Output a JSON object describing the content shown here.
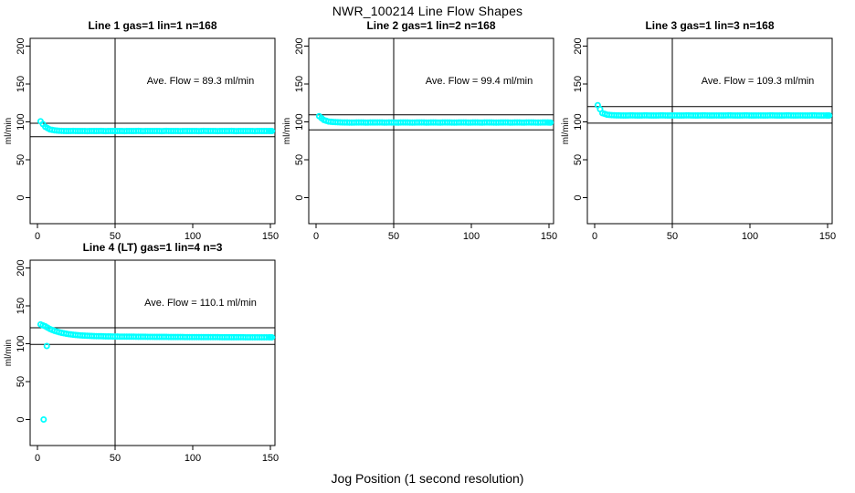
{
  "chart_data": {
    "type": "scatter",
    "title": "NWR_100214  Line Flow Shapes",
    "xlabel": "Jog Position (1 second resolution)",
    "ylabel": "ml/min",
    "x_ticks": [
      0,
      50,
      100,
      150
    ],
    "y_ticks": [
      0,
      50,
      100,
      150,
      200
    ],
    "xlim": [
      -5,
      157
    ],
    "ylim": [
      -35,
      211
    ],
    "grid": false,
    "legend": "none",
    "point_color": "#00FFFF",
    "line_color": "#000000",
    "vline_x": 50,
    "annotation_anchor": {
      "x": 105,
      "y": 150
    },
    "panels": [
      {
        "title": "Line 1 gas=1 lin=1 n=168",
        "ave_label": "Ave. Flow =  89.3  ml/min",
        "ave_flow": 89.3,
        "hlines": [
          98.2,
          80.4
        ],
        "points": [
          [
            2,
            100.8
          ],
          [
            5,
            93.5
          ],
          [
            8,
            90
          ],
          [
            11,
            88.8
          ],
          [
            14,
            88.3
          ],
          [
            17,
            88
          ],
          [
            20,
            87.9
          ],
          [
            23,
            88.1
          ],
          [
            26,
            87.9
          ],
          [
            29,
            88
          ],
          [
            32,
            87.8
          ],
          [
            35,
            88
          ],
          [
            38,
            87.9
          ],
          [
            41,
            88.1
          ],
          [
            44,
            87.8
          ],
          [
            47,
            88
          ],
          [
            50,
            87.9
          ],
          [
            53,
            88
          ],
          [
            56,
            87.8
          ],
          [
            59,
            88
          ],
          [
            62,
            87.9
          ],
          [
            65,
            88.1
          ],
          [
            68,
            87.8
          ],
          [
            71,
            88
          ],
          [
            74,
            87.9
          ],
          [
            77,
            88
          ],
          [
            80,
            87.8
          ],
          [
            83,
            88.1
          ],
          [
            86,
            87.9
          ],
          [
            89,
            88
          ],
          [
            92,
            87.8
          ],
          [
            95,
            88
          ],
          [
            98,
            87.9
          ],
          [
            101,
            88
          ],
          [
            104,
            87.8
          ],
          [
            107,
            88.1
          ],
          [
            110,
            87.9
          ],
          [
            113,
            88
          ],
          [
            116,
            87.8
          ],
          [
            119,
            88
          ],
          [
            122,
            87.9
          ],
          [
            125,
            88.1
          ],
          [
            128,
            87.8
          ],
          [
            131,
            88
          ],
          [
            134,
            87.9
          ],
          [
            137,
            88
          ],
          [
            140,
            87.8
          ],
          [
            143,
            88
          ],
          [
            146,
            87.9
          ],
          [
            149,
            88
          ],
          [
            151,
            87.9
          ]
        ],
        "outliers": []
      },
      {
        "title": "Line 2 gas=1 lin=2 n=168",
        "ave_label": "Ave. Flow =  99.4  ml/min",
        "ave_flow": 99.4,
        "hlines": [
          109.3,
          89.5
        ],
        "points": [
          [
            2,
            107.5
          ],
          [
            5,
            102.5
          ],
          [
            8,
            100.5
          ],
          [
            11,
            99.8
          ],
          [
            14,
            99.5
          ],
          [
            17,
            99.3
          ],
          [
            20,
            99.2
          ],
          [
            23,
            99.1
          ],
          [
            26,
            99.2
          ],
          [
            29,
            99.3
          ],
          [
            32,
            99.1
          ],
          [
            35,
            99.2
          ],
          [
            38,
            99.2
          ],
          [
            41,
            99.3
          ],
          [
            44,
            99.1
          ],
          [
            47,
            99.2
          ],
          [
            50,
            99.2
          ],
          [
            53,
            99.1
          ],
          [
            56,
            99.3
          ],
          [
            59,
            99.2
          ],
          [
            62,
            99.1
          ],
          [
            65,
            99.2
          ],
          [
            68,
            99.3
          ],
          [
            71,
            99.1
          ],
          [
            74,
            99.2
          ],
          [
            77,
            99.2
          ],
          [
            80,
            99.1
          ],
          [
            83,
            99.3
          ],
          [
            86,
            99.2
          ],
          [
            89,
            99.1
          ],
          [
            92,
            99.2
          ],
          [
            95,
            99.3
          ],
          [
            98,
            99.1
          ],
          [
            101,
            99.2
          ],
          [
            104,
            99.2
          ],
          [
            107,
            99.1
          ],
          [
            110,
            99.3
          ],
          [
            113,
            99.2
          ],
          [
            116,
            99.1
          ],
          [
            119,
            99.2
          ],
          [
            122,
            99.3
          ],
          [
            125,
            99.1
          ],
          [
            128,
            99.2
          ],
          [
            131,
            99.2
          ],
          [
            134,
            99.1
          ],
          [
            137,
            99.3
          ],
          [
            140,
            99.2
          ],
          [
            143,
            99.1
          ],
          [
            146,
            99.2
          ],
          [
            149,
            99.2
          ],
          [
            151,
            99.1
          ]
        ],
        "outliers": []
      },
      {
        "title": "Line 3 gas=1 lin=3 n=168",
        "ave_label": "Ave. Flow =  109.3  ml/min",
        "ave_flow": 109.3,
        "hlines": [
          120.2,
          98.4
        ],
        "points": [
          [
            2,
            122
          ],
          [
            5,
            111.5
          ],
          [
            8,
            109.5
          ],
          [
            11,
            108.9
          ],
          [
            14,
            108.6
          ],
          [
            17,
            108.5
          ],
          [
            20,
            108.4
          ],
          [
            23,
            108.6
          ],
          [
            26,
            108.5
          ],
          [
            29,
            108.4
          ],
          [
            32,
            108.6
          ],
          [
            35,
            108.5
          ],
          [
            38,
            108.4
          ],
          [
            41,
            108.5
          ],
          [
            44,
            108.6
          ],
          [
            47,
            108.4
          ],
          [
            50,
            108.5
          ],
          [
            53,
            108.5
          ],
          [
            56,
            108.4
          ],
          [
            59,
            108.6
          ],
          [
            62,
            108.5
          ],
          [
            65,
            108.4
          ],
          [
            68,
            108.5
          ],
          [
            71,
            108.6
          ],
          [
            74,
            108.4
          ],
          [
            77,
            108.5
          ],
          [
            80,
            108.5
          ],
          [
            83,
            108.4
          ],
          [
            86,
            108.6
          ],
          [
            89,
            108.5
          ],
          [
            92,
            108.4
          ],
          [
            95,
            108.5
          ],
          [
            98,
            108.6
          ],
          [
            101,
            108.4
          ],
          [
            104,
            108.5
          ],
          [
            107,
            108.5
          ],
          [
            110,
            108.4
          ],
          [
            113,
            108.6
          ],
          [
            116,
            108.5
          ],
          [
            119,
            108.4
          ],
          [
            122,
            108.5
          ],
          [
            125,
            108.6
          ],
          [
            128,
            108.4
          ],
          [
            131,
            108.5
          ],
          [
            134,
            108.5
          ],
          [
            137,
            108.4
          ],
          [
            140,
            108.6
          ],
          [
            143,
            108.5
          ],
          [
            146,
            108.4
          ],
          [
            149,
            108.5
          ],
          [
            151,
            108.4
          ]
        ],
        "outliers": []
      },
      {
        "title": "Line 4 (LT) gas=1 lin=4 n=3",
        "ave_label": "Ave. Flow =  110.1  ml/min",
        "ave_flow": 110.1,
        "hlines": [
          121.1,
          99.1
        ],
        "points": [
          [
            2,
            125.5
          ],
          [
            5,
            123
          ],
          [
            8,
            119.5
          ],
          [
            11,
            117
          ],
          [
            14,
            115.2
          ],
          [
            17,
            113.8
          ],
          [
            20,
            112.7
          ],
          [
            23,
            111.9
          ],
          [
            26,
            111.3
          ],
          [
            29,
            110.8
          ],
          [
            32,
            110.5
          ],
          [
            35,
            110.2
          ],
          [
            38,
            110
          ],
          [
            41,
            109.9
          ],
          [
            44,
            109.7
          ],
          [
            47,
            109.6
          ],
          [
            50,
            109.5
          ],
          [
            53,
            109.4
          ],
          [
            56,
            109.4
          ],
          [
            59,
            109.3
          ],
          [
            62,
            109.3
          ],
          [
            65,
            109.2
          ],
          [
            68,
            109.2
          ],
          [
            71,
            109.1
          ],
          [
            74,
            109.1
          ],
          [
            77,
            109
          ],
          [
            80,
            109
          ],
          [
            83,
            109
          ],
          [
            86,
            108.9
          ],
          [
            89,
            108.9
          ],
          [
            92,
            108.9
          ],
          [
            95,
            108.8
          ],
          [
            98,
            108.8
          ],
          [
            101,
            108.8
          ],
          [
            104,
            108.8
          ],
          [
            107,
            108.7
          ],
          [
            110,
            108.7
          ],
          [
            113,
            108.7
          ],
          [
            116,
            108.7
          ],
          [
            119,
            108.6
          ],
          [
            122,
            108.6
          ],
          [
            125,
            108.6
          ],
          [
            128,
            108.6
          ],
          [
            131,
            108.6
          ],
          [
            134,
            108.5
          ],
          [
            137,
            108.5
          ],
          [
            140,
            108.5
          ],
          [
            143,
            108.5
          ],
          [
            146,
            108.5
          ],
          [
            149,
            108.5
          ],
          [
            151,
            108.5
          ]
        ],
        "outliers": [
          [
            4,
            0
          ],
          [
            6,
            97
          ]
        ]
      }
    ]
  }
}
